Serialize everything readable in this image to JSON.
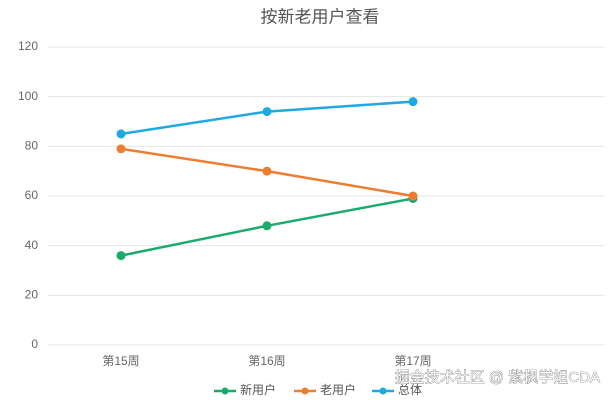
{
  "chart_data": {
    "type": "line",
    "title": "按新老用户查看",
    "categories": [
      "第15周",
      "第16周",
      "第17周",
      null
    ],
    "series": [
      {
        "name": "新用户",
        "color": "#1aab6b",
        "values": [
          36,
          48,
          59,
          null
        ]
      },
      {
        "name": "老用户",
        "color": "#ed7d31",
        "values": [
          79,
          70,
          60,
          null
        ]
      },
      {
        "name": "总体",
        "color": "#1ea9e0",
        "values": [
          85,
          94,
          98,
          null
        ]
      }
    ],
    "ylim": [
      0,
      120
    ],
    "yticks": [
      0,
      20,
      40,
      60,
      80,
      100,
      120
    ],
    "grid": true,
    "legend": "bottom",
    "watermark": "掘金技术社区 @ 紫枫学姐CDA"
  }
}
